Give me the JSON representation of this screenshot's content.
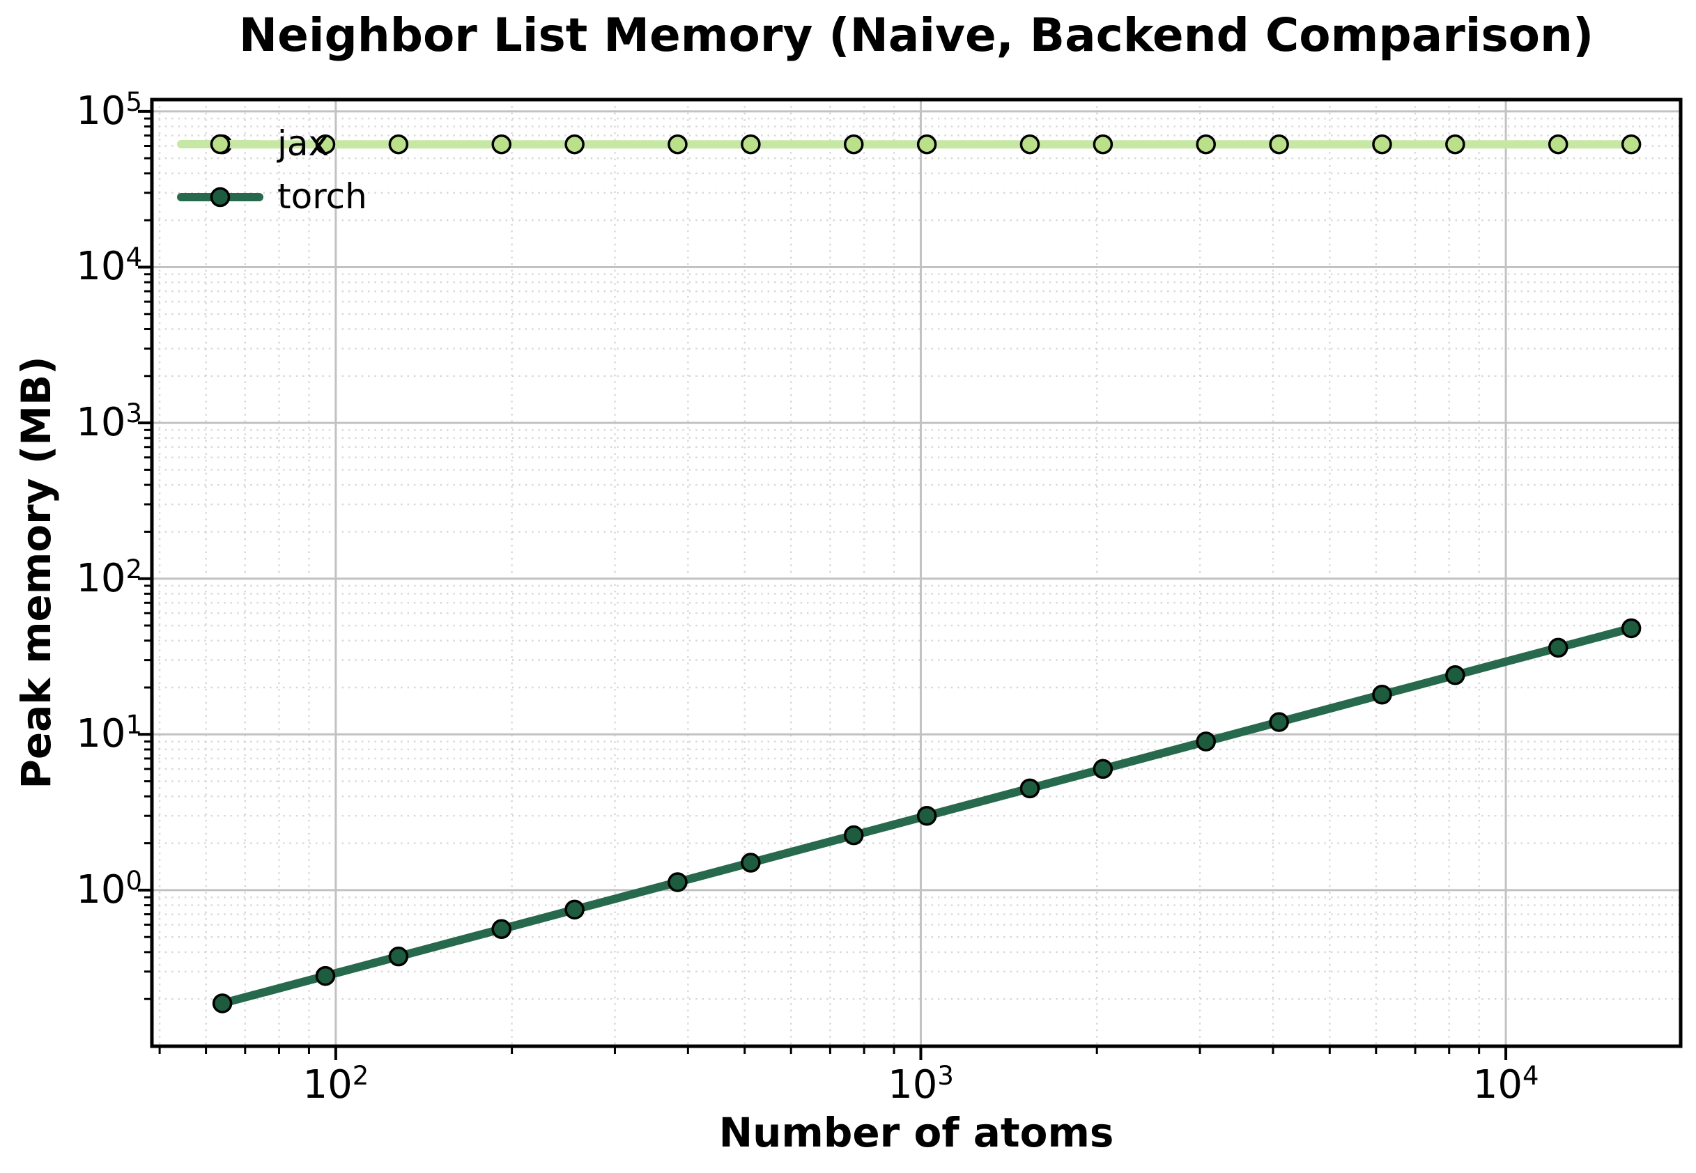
{
  "title": "Neighbor List Memory (Naive, Backend Comparison)",
  "colors": {
    "background": "#ffffff",
    "spine": "#000000",
    "major_grid": "#c2c2c2",
    "minor_grid": "#d6d6d6",
    "jax_line": "#c7e8a4",
    "jax_marker": "#bae18a",
    "torch_line": "#27694c",
    "torch_marker": "#1d5c3e",
    "marker_edge": "#000000"
  },
  "legend": {
    "position": "upper left",
    "items": [
      {
        "label": "jax"
      },
      {
        "label": "torch"
      }
    ]
  },
  "chart_data": {
    "type": "line",
    "title": "Neighbor List Memory (Naive, Backend Comparison)",
    "xlabel": "Number of atoms",
    "ylabel": "Peak memory (MB)",
    "x_scale": "log",
    "y_scale": "log",
    "xlim": [
      48.5,
      19900
    ],
    "ylim": [
      0.0995,
      119000
    ],
    "x_tick_exponents": [
      2,
      3,
      4
    ],
    "y_tick_exponents": [
      0,
      1,
      2,
      3,
      4,
      5
    ],
    "grid": true,
    "legend_position": "upper left",
    "x": [
      64,
      96,
      128,
      192,
      256,
      384,
      512,
      768,
      1024,
      1536,
      2048,
      3072,
      4096,
      6144,
      8192,
      12288,
      16384
    ],
    "series": [
      {
        "name": "jax",
        "values": [
          61440,
          61440,
          61440,
          61440,
          61440,
          61440,
          61440,
          61440,
          61440,
          61440,
          61440,
          61440,
          61440,
          61440,
          61440,
          61440,
          61440
        ]
      },
      {
        "name": "torch",
        "values": [
          0.1875,
          0.28125,
          0.375,
          0.5625,
          0.75,
          1.125,
          1.5,
          2.25,
          3.0,
          4.5,
          6.0,
          9.0,
          12.0,
          18.0,
          24.0,
          36.0,
          48.0
        ]
      }
    ]
  }
}
